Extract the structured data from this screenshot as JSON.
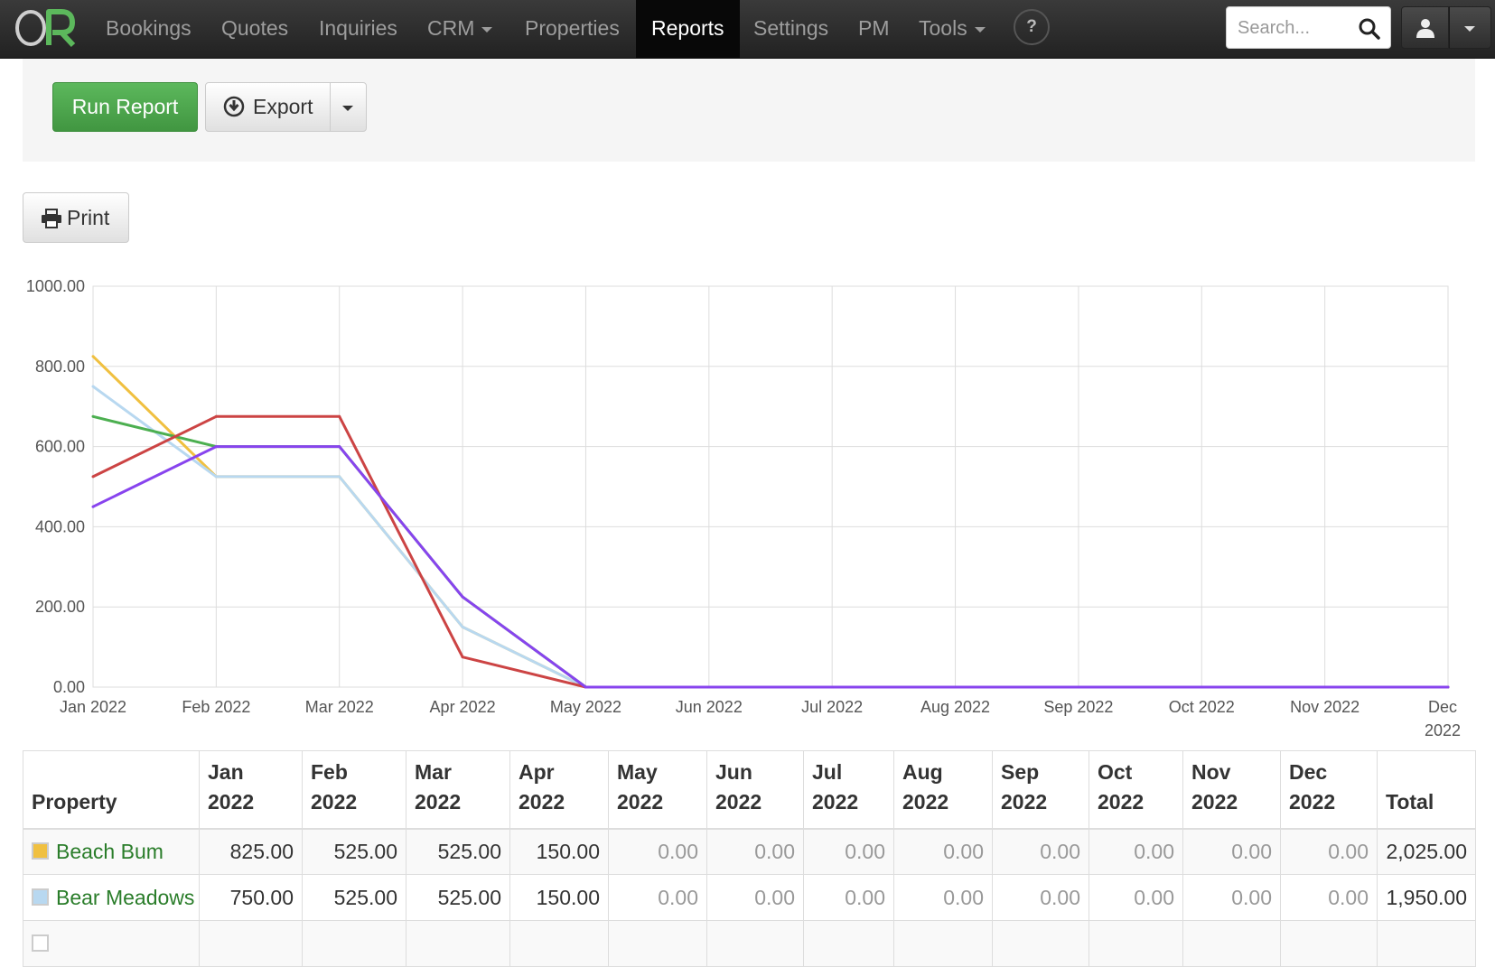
{
  "nav": {
    "logo_text": "OR",
    "items": [
      {
        "label": "Bookings"
      },
      {
        "label": "Quotes"
      },
      {
        "label": "Inquiries"
      },
      {
        "label": "CRM"
      },
      {
        "label": "Properties"
      },
      {
        "label": "Reports"
      },
      {
        "label": "Settings"
      },
      {
        "label": "PM"
      },
      {
        "label": "Tools"
      }
    ],
    "active": "Reports",
    "help_label": "?",
    "search_placeholder": "Search..."
  },
  "toolbar": {
    "run_label": "Run Report",
    "export_label": "Export",
    "print_label": "Print"
  },
  "colors": {
    "beach_bum": "#f0c040",
    "bear_meadows": "#b8d8f0",
    "green_series": "#4caf50",
    "red_series": "#cc4444",
    "purple_series": "#8844ee",
    "run_button": "#5cb85c"
  },
  "chart_data": {
    "type": "line",
    "categories": [
      "Jan 2022",
      "Feb 2022",
      "Mar 2022",
      "Apr 2022",
      "May 2022",
      "Jun 2022",
      "Jul 2022",
      "Aug 2022",
      "Sep 2022",
      "Oct 2022",
      "Nov 2022",
      "Dec 2022"
    ],
    "y_ticks": [
      "1000.00",
      "800.00",
      "600.00",
      "400.00",
      "200.00",
      "0.00"
    ],
    "ylim": [
      0,
      1000
    ],
    "grid": true,
    "series": [
      {
        "name": "Beach Bum",
        "color": "#f0c040",
        "values": [
          825,
          525,
          525,
          150,
          0,
          0,
          0,
          0,
          0,
          0,
          0,
          0
        ]
      },
      {
        "name": "Bear Meadows",
        "color": "#b8d8f0",
        "values": [
          750,
          525,
          525,
          150,
          0,
          0,
          0,
          0,
          0,
          0,
          0,
          0
        ]
      },
      {
        "color": "#4caf50",
        "values": [
          675,
          600,
          600,
          225,
          0,
          0,
          0,
          0,
          0,
          0,
          0,
          0
        ]
      },
      {
        "color": "#cc4444",
        "values": [
          525,
          675,
          675,
          75,
          0,
          0,
          0,
          0,
          0,
          0,
          0,
          0
        ]
      },
      {
        "color": "#8844ee",
        "values": [
          450,
          600,
          600,
          225,
          0,
          0,
          0,
          0,
          0,
          0,
          0,
          0
        ]
      }
    ]
  },
  "table": {
    "headers": [
      [
        "Property"
      ],
      [
        "Jan",
        "2022"
      ],
      [
        "Feb",
        "2022"
      ],
      [
        "Mar",
        "2022"
      ],
      [
        "Apr",
        "2022"
      ],
      [
        "May",
        "2022"
      ],
      [
        "Jun",
        "2022"
      ],
      [
        "Jul",
        "2022"
      ],
      [
        "Aug",
        "2022"
      ],
      [
        "Sep",
        "2022"
      ],
      [
        "Oct",
        "2022"
      ],
      [
        "Nov",
        "2022"
      ],
      [
        "Dec",
        "2022"
      ],
      [
        "Total"
      ]
    ],
    "rows": [
      {
        "property": "Beach Bum",
        "color": "#f0c040",
        "values": [
          "825.00",
          "525.00",
          "525.00",
          "150.00",
          "0.00",
          "0.00",
          "0.00",
          "0.00",
          "0.00",
          "0.00",
          "0.00",
          "0.00"
        ],
        "total": "2,025.00"
      },
      {
        "property": "Bear Meadows",
        "color": "#b8d8f0",
        "values": [
          "750.00",
          "525.00",
          "525.00",
          "150.00",
          "0.00",
          "0.00",
          "0.00",
          "0.00",
          "0.00",
          "0.00",
          "0.00",
          "0.00"
        ],
        "total": "1,950.00"
      },
      {
        "property": "",
        "color": "#ffffff",
        "values": [
          "",
          "",
          "",
          "",
          "",
          "",
          "",
          "",
          "",
          "",
          "",
          ""
        ],
        "total": ""
      }
    ]
  }
}
